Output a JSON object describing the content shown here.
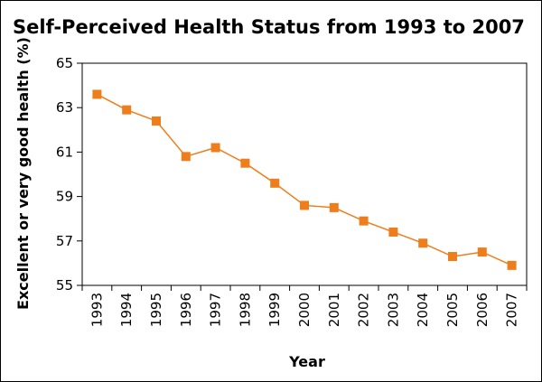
{
  "chart_data": {
    "type": "line",
    "title": "Self-Perceived Health Status from 1993 to 2007",
    "xlabel": "Year",
    "ylabel": "Excellent or very good health (%)",
    "x": [
      "1993",
      "1994",
      "1995",
      "1996",
      "1997",
      "1998",
      "1999",
      "2000",
      "2001",
      "2002",
      "2003",
      "2004",
      "2005",
      "2006",
      "2007"
    ],
    "series": [
      {
        "values": [
          63.6,
          62.9,
          62.4,
          60.8,
          61.2,
          60.5,
          59.6,
          58.6,
          58.5,
          57.9,
          57.4,
          56.9,
          56.3,
          56.5,
          55.9
        ],
        "color": "#ee7d1b",
        "marker": "square"
      }
    ],
    "ylim": [
      55,
      65
    ],
    "yticks": [
      "55",
      "57",
      "59",
      "61",
      "63",
      "65"
    ],
    "grid": false,
    "legend": "none"
  }
}
